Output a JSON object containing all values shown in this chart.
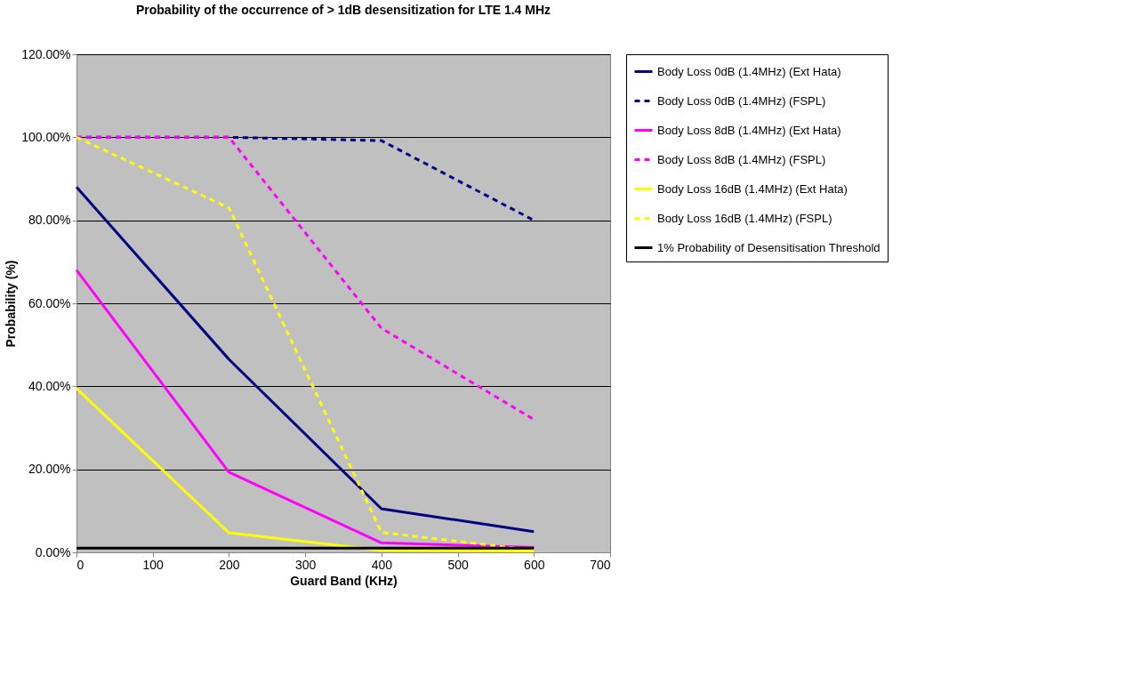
{
  "chart_data": {
    "type": "line",
    "title": "Probability of the occurrence of > 1dB desensitization for LTE 1.4 MHz",
    "xlabel": "Guard Band (KHz)",
    "ylabel": "Probability (%)",
    "x": [
      0,
      200,
      400,
      600
    ],
    "series": [
      {
        "name": "Body Loss 0dB (1.4MHz) (Ext Hata)",
        "color": "#000080",
        "line_style": "solid",
        "values": [
          88,
          46.5,
          10.5,
          5
        ]
      },
      {
        "name": "Body Loss 0dB (1.4MHz) (FSPL)",
        "color": "#000080",
        "line_style": "dashed",
        "values": [
          100,
          100,
          99.2,
          80
        ]
      },
      {
        "name": "Body Loss 8dB (1.4MHz) (Ext Hata)",
        "color": "#ff00ff",
        "line_style": "solid",
        "values": [
          68,
          19.3,
          2.3,
          1.2
        ]
      },
      {
        "name": "Body Loss 8dB (1.4MHz) (FSPL)",
        "color": "#ff00ff",
        "line_style": "dashed",
        "values": [
          100,
          100,
          54,
          32
        ]
      },
      {
        "name": "Body Loss 16dB (1.4MHz) (Ext Hata)",
        "color": "#ffff00",
        "line_style": "solid",
        "values": [
          39.5,
          4.7,
          0.5,
          0.3
        ]
      },
      {
        "name": "Body Loss 16dB (1.4MHz) (FSPL)",
        "color": "#ffff00",
        "line_style": "dashed",
        "values": [
          100,
          83,
          4.8,
          0.5
        ]
      },
      {
        "name": "1% Probability of Desensitisation Threshold",
        "color": "#000000",
        "line_style": "solid",
        "values": [
          1,
          1,
          1,
          1
        ]
      }
    ],
    "xlim": [
      0,
      700
    ],
    "xticks": [
      0,
      100,
      200,
      300,
      400,
      500,
      600,
      700
    ],
    "ylim": [
      0,
      120
    ],
    "yticks": [
      {
        "value": 0,
        "label": "0.00%"
      },
      {
        "value": 20,
        "label": "20.00%"
      },
      {
        "value": 40,
        "label": "40.00%"
      },
      {
        "value": 60,
        "label": "60.00%"
      },
      {
        "value": 80,
        "label": "80.00%"
      },
      {
        "value": 100,
        "label": "100.00%"
      },
      {
        "value": 120,
        "label": "120.00%"
      }
    ],
    "grid": "y",
    "legend": "right",
    "marker": "none"
  }
}
